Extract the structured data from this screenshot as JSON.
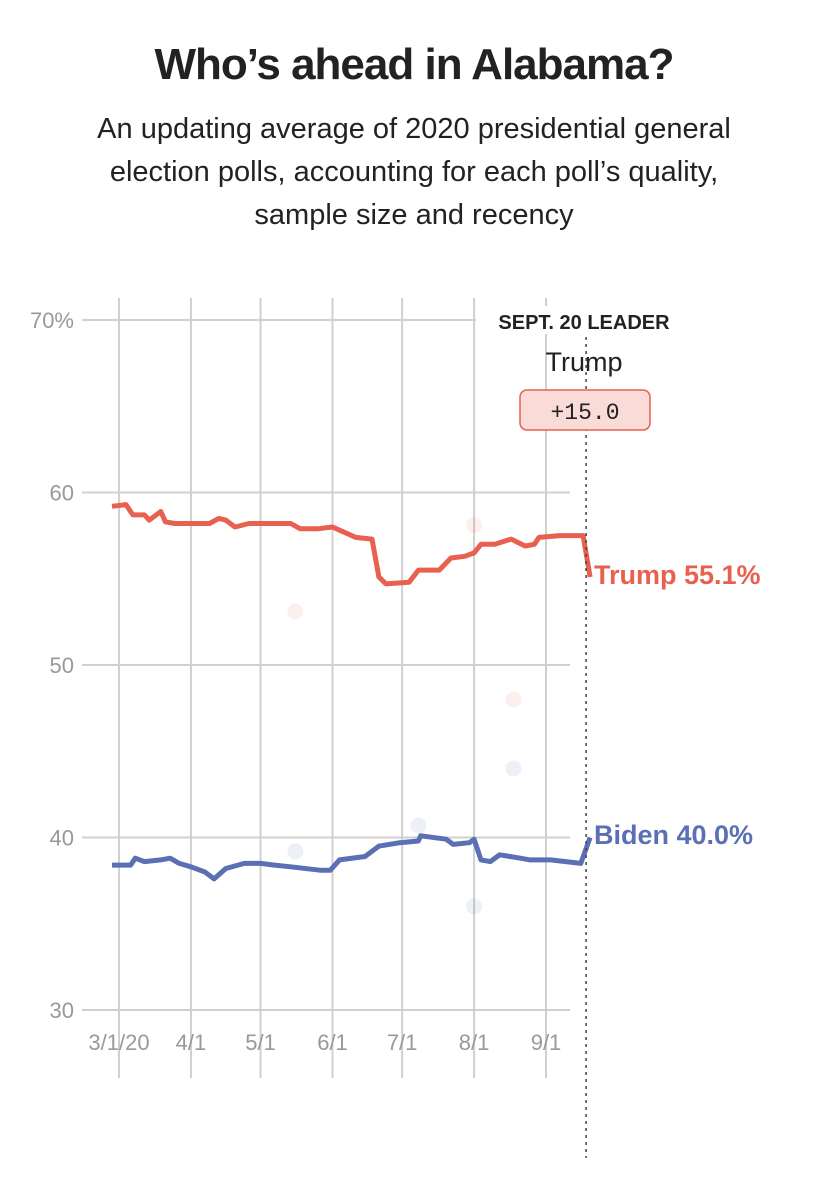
{
  "title": "Who’s ahead in Alabama?",
  "subtitle": [
    "An updating average of 2020 presidential general",
    "election polls, accounting for each poll’s quality,",
    "sample size and recency"
  ],
  "leader": {
    "header": "SEPT. 20 LEADER",
    "name": "Trump",
    "margin": "+15.0"
  },
  "colors": {
    "trump": "#e8604f",
    "biden": "#5b6fb4",
    "grid": "#d0d0d0",
    "badge_bg": "#f9dcd8"
  },
  "chart_data": {
    "type": "line",
    "title": "Who’s ahead in Alabama?",
    "x_unit": "days since 3/1/20",
    "xlim": [
      -3,
      203
    ],
    "ylim": [
      25,
      70
    ],
    "y_ticks": [
      30,
      40,
      50,
      60,
      70
    ],
    "y_tick_labels": [
      "30",
      "40",
      "50",
      "60",
      "70%"
    ],
    "x_ticks": [
      0,
      31,
      61,
      92,
      122,
      153,
      184
    ],
    "x_tick_labels": [
      "3/1/20",
      "4/1",
      "5/1",
      "6/1",
      "7/1",
      "8/1",
      "9/1"
    ],
    "grid": true,
    "series": [
      {
        "name": "Trump",
        "end_label": "Trump 55.1%",
        "x": [
          -3,
          3,
          6,
          11,
          13,
          18,
          20,
          24,
          39,
          43,
          46,
          50,
          56,
          65,
          74,
          78,
          86,
          92,
          97,
          102,
          109,
          112,
          115,
          125,
          129,
          138,
          143,
          149,
          153,
          156,
          162,
          169,
          175,
          179,
          181,
          190,
          200,
          203
        ],
        "y": [
          59.2,
          59.3,
          58.7,
          58.7,
          58.4,
          58.9,
          58.3,
          58.2,
          58.2,
          58.5,
          58.4,
          58.0,
          58.2,
          58.2,
          58.2,
          57.9,
          57.9,
          58.0,
          57.7,
          57.4,
          57.3,
          55.1,
          54.7,
          54.8,
          55.5,
          55.5,
          56.2,
          56.3,
          56.5,
          57.0,
          57.0,
          57.3,
          56.9,
          57.0,
          57.4,
          57.5,
          57.5,
          55.1
        ]
      },
      {
        "name": "Biden",
        "end_label": "Biden 40.0%",
        "x": [
          -3,
          5,
          7,
          11,
          18,
          22,
          26,
          31,
          37,
          41,
          46,
          54,
          61,
          67,
          74,
          87,
          91,
          95,
          106,
          112,
          121,
          129,
          130,
          141,
          144,
          151,
          153,
          156,
          160,
          164,
          173,
          177,
          186,
          199,
          203
        ],
        "y": [
          38.4,
          38.4,
          38.8,
          38.6,
          38.7,
          38.8,
          38.5,
          38.3,
          38.0,
          37.6,
          38.2,
          38.5,
          38.5,
          38.4,
          38.3,
          38.1,
          38.1,
          38.7,
          38.9,
          39.5,
          39.7,
          39.8,
          40.1,
          39.9,
          39.6,
          39.7,
          39.9,
          38.7,
          38.6,
          39.0,
          38.8,
          38.7,
          38.7,
          38.5,
          40.0
        ]
      }
    ],
    "polls": [
      {
        "candidate": "Trump",
        "x": 76,
        "y": 53.1
      },
      {
        "candidate": "Trump",
        "x": 153,
        "y": 58.1
      },
      {
        "candidate": "Trump",
        "x": 170,
        "y": 48.0
      },
      {
        "candidate": "Biden",
        "x": 76,
        "y": 39.2
      },
      {
        "candidate": "Biden",
        "x": 129,
        "y": 40.7
      },
      {
        "candidate": "Biden",
        "x": 153,
        "y": 36.0
      },
      {
        "candidate": "Biden",
        "x": 170,
        "y": 44.0
      }
    ],
    "current_date_marker": {
      "x": 203,
      "label": "SEPT. 20 LEADER"
    }
  }
}
